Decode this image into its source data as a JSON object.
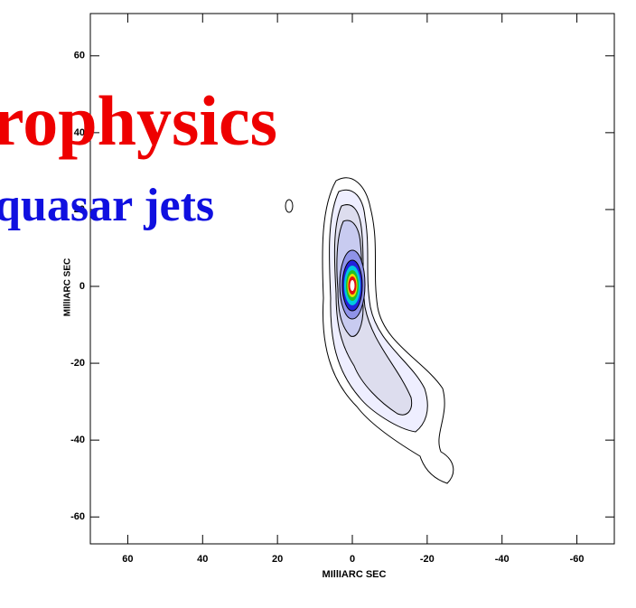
{
  "chart_data": {
    "type": "contour",
    "title": "rophysics",
    "subtitle": "quasar jets",
    "xlabel": "MIllIARC SEC",
    "ylabel": "MIllIARC SEC",
    "xlim": [
      70,
      -70
    ],
    "ylim": [
      -67,
      71
    ],
    "xticks": [
      60,
      40,
      20,
      0,
      -20,
      -40,
      -60
    ],
    "yticks": [
      60,
      40,
      20,
      0,
      -20,
      -40,
      -60
    ]
  }
}
